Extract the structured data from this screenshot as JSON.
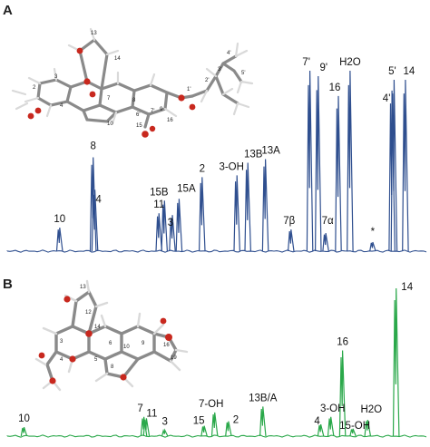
{
  "chart_data": [
    {
      "type": "line",
      "panel": "A",
      "color": "#2f4f8f",
      "x_direction": "decreasing",
      "peaks": [
        {
          "label": "10",
          "rel_x": 0.125,
          "height": 0.13
        },
        {
          "label": "8",
          "rel_x": 0.205,
          "height": 0.52
        },
        {
          "label": "4",
          "rel_x": 0.209,
          "height": 0.34
        },
        {
          "label": "11",
          "rel_x": 0.362,
          "height": 0.21
        },
        {
          "label": "15B",
          "rel_x": 0.375,
          "height": 0.28
        },
        {
          "label": "3",
          "rel_x": 0.394,
          "height": 0.2
        },
        {
          "label": "15A",
          "rel_x": 0.41,
          "height": 0.29
        },
        {
          "label": "2",
          "rel_x": 0.465,
          "height": 0.41
        },
        {
          "label": "3-OH",
          "rel_x": 0.548,
          "height": 0.42
        },
        {
          "label": "13B",
          "rel_x": 0.574,
          "height": 0.49
        },
        {
          "label": "13A",
          "rel_x": 0.616,
          "height": 0.51
        },
        {
          "label": "7β",
          "rel_x": 0.677,
          "height": 0.12
        },
        {
          "label": "7'",
          "rel_x": 0.722,
          "height": 1.0
        },
        {
          "label": "9'",
          "rel_x": 0.742,
          "height": 0.97
        },
        {
          "label": "7α",
          "rel_x": 0.76,
          "height": 0.1
        },
        {
          "label": "16",
          "rel_x": 0.79,
          "height": 0.86
        },
        {
          "label": "H2O",
          "rel_x": 0.818,
          "height": 1.0
        },
        {
          "label": "*",
          "rel_x": 0.872,
          "height": 0.05
        },
        {
          "label": "4'",
          "rel_x": 0.918,
          "height": 0.89
        },
        {
          "label": "5'",
          "rel_x": 0.923,
          "height": 0.95
        },
        {
          "label": "14",
          "rel_x": 0.95,
          "height": 0.95
        }
      ]
    },
    {
      "type": "line",
      "panel": "B",
      "color": "#2aa84a",
      "x_direction": "decreasing",
      "peaks": [
        {
          "label": "10",
          "rel_x": 0.04,
          "height": 0.06
        },
        {
          "label": "7",
          "rel_x": 0.326,
          "height": 0.13
        },
        {
          "label": "11",
          "rel_x": 0.332,
          "height": 0.12
        },
        {
          "label": "3",
          "rel_x": 0.376,
          "height": 0.04
        },
        {
          "label": "15",
          "rel_x": 0.47,
          "height": 0.07
        },
        {
          "label": "7-OH",
          "rel_x": 0.495,
          "height": 0.16
        },
        {
          "label": "2",
          "rel_x": 0.528,
          "height": 0.1
        },
        {
          "label": "13B/A",
          "rel_x": 0.61,
          "height": 0.2
        },
        {
          "label": "4",
          "rel_x": 0.748,
          "height": 0.08
        },
        {
          "label": "3-OH",
          "rel_x": 0.772,
          "height": 0.13
        },
        {
          "label": "16",
          "rel_x": 0.8,
          "height": 0.58
        },
        {
          "label": "15-OH",
          "rel_x": 0.825,
          "height": 0.05
        },
        {
          "label": "H2O",
          "rel_x": 0.86,
          "height": 0.11
        },
        {
          "label": "14",
          "rel_x": 0.928,
          "height": 1.0
        }
      ]
    }
  ]
}
